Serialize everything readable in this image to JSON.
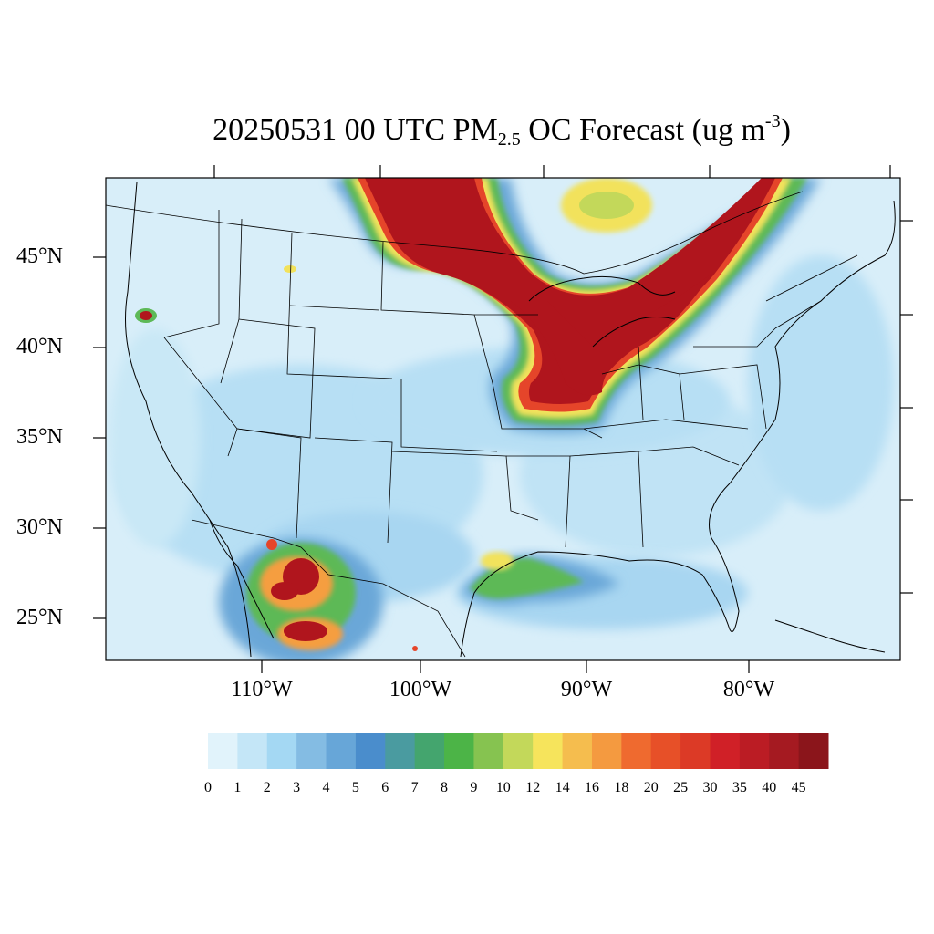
{
  "title": {
    "main": "20250531 00 UTC PM",
    "subscript": "2.5",
    "after": " OC Forecast (ug m",
    "superscript": "-3",
    "close": ")"
  },
  "axes": {
    "lat_labels": [
      "45°N",
      "40°N",
      "35°N",
      "30°N",
      "25°N"
    ],
    "lon_labels": [
      "110°W",
      "100°W",
      "90°W",
      "80°W"
    ]
  },
  "colorbar": {
    "labels": [
      "0",
      "1",
      "2",
      "3",
      "4",
      "5",
      "6",
      "7",
      "8",
      "9",
      "10",
      "12",
      "14",
      "16",
      "18",
      "20",
      "25",
      "30",
      "35",
      "40",
      "45"
    ],
    "colors": [
      "#e1f3fb",
      "#c4e6f7",
      "#a4d8f3",
      "#84bce3",
      "#67a6d8",
      "#4a8dcc",
      "#4a9ba0",
      "#44a56e",
      "#4cb447",
      "#86c350",
      "#c3d85a",
      "#f6e45c",
      "#f5bd4e",
      "#f49a40",
      "#ef6a2f",
      "#e75028",
      "#dc3a26",
      "#d02027",
      "#bb1c24",
      "#a51a21",
      "#8b151b"
    ]
  },
  "map": {
    "background_color": "#d8eef9",
    "plume_colors": {
      "high": "#b0151d",
      "mid": "#e5452a",
      "orange": "#f59e40",
      "yellow": "#f2e25c",
      "green": "#5db957",
      "blue": "#6aa7d8"
    }
  }
}
